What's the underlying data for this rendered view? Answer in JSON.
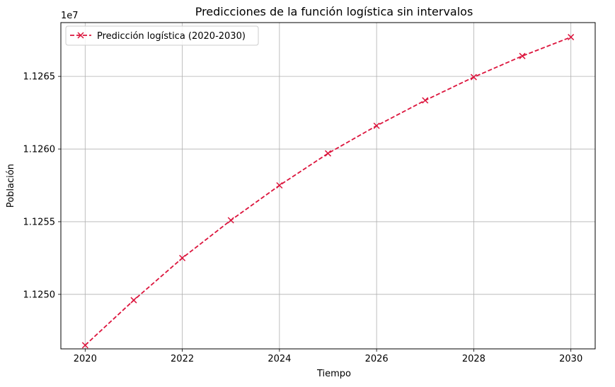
{
  "chart_data": {
    "type": "line",
    "title": "Predicciones de la función logística sin intervalos",
    "xlabel": "Tiempo",
    "ylabel": "Población",
    "y_offset_label": "1e7",
    "xlim": [
      2019.5,
      2030.5
    ],
    "ylim": [
      11246250,
      11268700
    ],
    "x_ticks": [
      2020,
      2022,
      2024,
      2026,
      2028,
      2030
    ],
    "x_tick_labels": [
      "2020",
      "2022",
      "2024",
      "2026",
      "2028",
      "2030"
    ],
    "y_ticks": [
      11250000,
      11255000,
      11260000,
      11265000
    ],
    "y_tick_labels": [
      "1.1250",
      "1.1255",
      "1.1260",
      "1.1265"
    ],
    "grid": true,
    "legend_position": "top-left",
    "series": [
      {
        "name": "Predicción logística (2020-2030)",
        "color": "#dc143c",
        "line_style": "dashed",
        "marker": "x",
        "x": [
          2020,
          2021,
          2022,
          2023,
          2024,
          2025,
          2026,
          2027,
          2028,
          2029,
          2030
        ],
        "y": [
          11246500,
          11249600,
          11252500,
          11255100,
          11257500,
          11259700,
          11261600,
          11263350,
          11264950,
          11266400,
          11267700
        ]
      }
    ]
  }
}
